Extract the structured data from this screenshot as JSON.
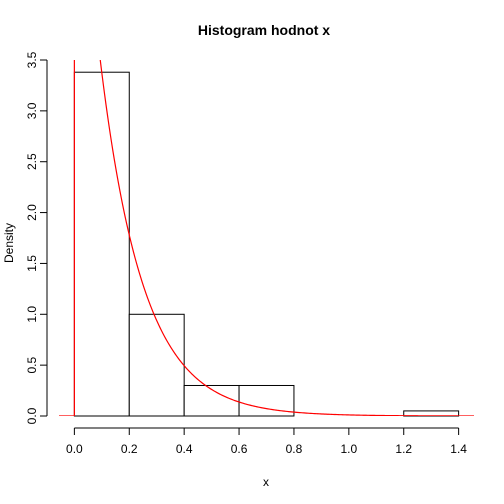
{
  "chart_data": {
    "type": "bar",
    "title": "Histogram hodnot x",
    "xlabel": "x",
    "ylabel": "Density",
    "xlim": [
      -0.056,
      1.456
    ],
    "ylim": [
      0,
      3.5
    ],
    "x_ticks": [
      0.0,
      0.2,
      0.4,
      0.6,
      0.8,
      1.0,
      1.2,
      1.4
    ],
    "x_tick_labels": [
      "0.0",
      "0.2",
      "0.4",
      "0.6",
      "0.8",
      "1.0",
      "1.2",
      "1.4"
    ],
    "y_ticks": [
      0.0,
      0.5,
      1.0,
      1.5,
      2.0,
      2.5,
      3.0,
      3.5
    ],
    "y_tick_labels": [
      "0.0",
      "0.5",
      "1.0",
      "1.5",
      "2.0",
      "2.5",
      "3.0",
      "3.5"
    ],
    "bins": [
      {
        "x0": 0.0,
        "x1": 0.2,
        "density": 3.38
      },
      {
        "x0": 0.2,
        "x1": 0.4,
        "density": 1.0
      },
      {
        "x0": 0.4,
        "x1": 0.6,
        "density": 0.3
      },
      {
        "x0": 0.6,
        "x1": 0.8,
        "density": 0.3
      },
      {
        "x0": 0.8,
        "x1": 1.0,
        "density": 0.0
      },
      {
        "x0": 1.0,
        "x1": 1.2,
        "density": 0.0
      },
      {
        "x0": 1.2,
        "x1": 1.4,
        "density": 0.05
      }
    ],
    "overlay": {
      "type": "line",
      "curve": "exponential density",
      "rate": 6.4,
      "color": "#ff0000"
    },
    "bar_fill": "#ffffff",
    "bar_stroke": "#000000",
    "grid": false
  }
}
